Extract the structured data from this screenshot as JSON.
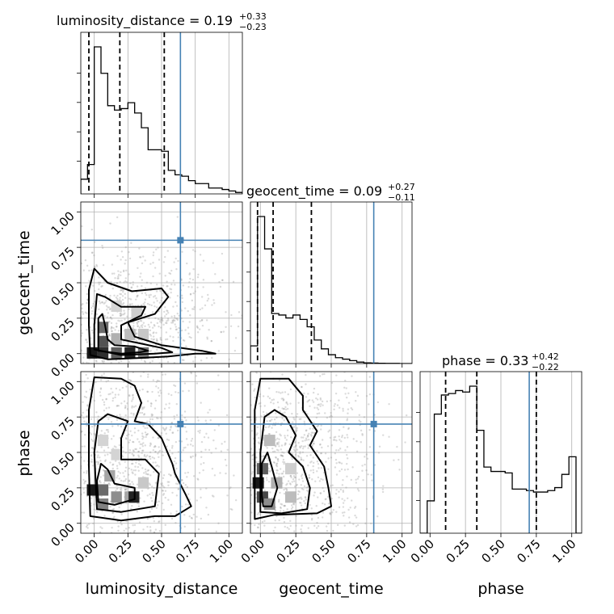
{
  "colors": {
    "truth": "#4682b4",
    "grid": "#b0b0b0",
    "line": "#000000",
    "scatter": "#999999"
  },
  "chart_data": {
    "type": "corner",
    "parameters": [
      "luminosity_distance",
      "geocent_time",
      "phase"
    ],
    "axis_ticks": [
      "0.00",
      "0.25",
      "0.50",
      "0.75",
      "1.00"
    ],
    "truths": {
      "luminosity_distance": 0.64,
      "geocent_time": 0.8,
      "phase": 0.7
    },
    "ranges": {
      "luminosity_distance": [
        -0.1,
        1.1
      ],
      "geocent_time": [
        -0.07,
        1.07
      ],
      "phase": [
        -0.07,
        1.07
      ]
    },
    "marginals": [
      {
        "parameter": "luminosity_distance",
        "title": "luminosity_distance = 0.19",
        "err_plus": "+0.33",
        "err_minus": "−0.23",
        "quantiles": [
          -0.04,
          0.19,
          0.52
        ],
        "bins": [
          -0.1,
          -0.05,
          0.0,
          0.05,
          0.1,
          0.15,
          0.2,
          0.25,
          0.3,
          0.35,
          0.4,
          0.45,
          0.5,
          0.55,
          0.6,
          0.65,
          0.7,
          0.75,
          0.8,
          0.85,
          0.9,
          0.95,
          1.0,
          1.05,
          1.1
        ],
        "counts": [
          100,
          200,
          1000,
          820,
          600,
          570,
          580,
          620,
          550,
          450,
          300,
          300,
          290,
          160,
          130,
          120,
          90,
          70,
          70,
          40,
          40,
          30,
          20,
          10
        ],
        "ymax": 1000
      },
      {
        "parameter": "geocent_time",
        "title": "geocent_time = 0.09",
        "err_plus": "+0.27",
        "err_minus": "−0.11",
        "quantiles": [
          -0.02,
          0.09,
          0.36
        ],
        "bins": [
          -0.07,
          -0.02,
          0.03,
          0.08,
          0.13,
          0.18,
          0.23,
          0.28,
          0.33,
          0.38,
          0.43,
          0.48,
          0.53,
          0.58,
          0.63,
          0.68,
          0.73,
          0.78,
          0.83,
          0.88,
          0.93,
          0.98,
          1.03,
          1.07
        ],
        "counts": [
          120,
          1000,
          780,
          340,
          330,
          310,
          330,
          300,
          250,
          160,
          100,
          60,
          40,
          30,
          20,
          10,
          5,
          3,
          2,
          1,
          1,
          0,
          0
        ],
        "ymax": 1000
      },
      {
        "parameter": "phase",
        "title": "phase = 0.33",
        "err_plus": "+0.42",
        "err_minus": "−0.22",
        "quantiles": [
          0.11,
          0.33,
          0.75
        ],
        "bins": [
          -0.07,
          -0.02,
          0.03,
          0.08,
          0.13,
          0.18,
          0.23,
          0.28,
          0.33,
          0.38,
          0.43,
          0.48,
          0.53,
          0.58,
          0.63,
          0.68,
          0.73,
          0.78,
          0.83,
          0.88,
          0.93,
          0.98,
          1.03,
          1.07
        ],
        "counts": [
          0,
          220,
          810,
          940,
          950,
          970,
          960,
          1000,
          700,
          450,
          420,
          420,
          410,
          300,
          300,
          290,
          280,
          280,
          290,
          310,
          400,
          520,
          0
        ],
        "ymax": 1000
      }
    ],
    "panels": [
      {
        "x": "luminosity_distance",
        "y": "geocent_time",
        "contours": [
          [
            [
              -0.03,
              -0.01
            ],
            [
              0.1,
              -0.04
            ],
            [
              0.35,
              -0.03
            ],
            [
              0.55,
              -0.02
            ],
            [
              0.75,
              0.0
            ],
            [
              0.9,
              0.0
            ],
            [
              0.8,
              0.02
            ],
            [
              0.5,
              0.06
            ],
            [
              0.3,
              0.12
            ],
            [
              0.25,
              0.22
            ],
            [
              0.45,
              0.28
            ],
            [
              0.55,
              0.4
            ],
            [
              0.5,
              0.46
            ],
            [
              0.28,
              0.44
            ],
            [
              0.1,
              0.5
            ],
            [
              0.04,
              0.56
            ],
            [
              0.0,
              0.6
            ],
            [
              -0.04,
              0.45
            ],
            [
              -0.04,
              0.2
            ],
            [
              -0.03,
              -0.01
            ]
          ],
          [
            [
              0.0,
              0.03
            ],
            [
              0.2,
              -0.01
            ],
            [
              0.45,
              0.0
            ],
            [
              0.58,
              0.01
            ],
            [
              0.5,
              0.04
            ],
            [
              0.35,
              0.07
            ],
            [
              0.2,
              0.1
            ],
            [
              0.2,
              0.2
            ],
            [
              0.35,
              0.27
            ],
            [
              0.38,
              0.33
            ],
            [
              0.2,
              0.33
            ],
            [
              0.08,
              0.4
            ],
            [
              0.02,
              0.42
            ],
            [
              0.0,
              0.2
            ],
            [
              0.0,
              0.03
            ]
          ],
          [
            [
              0.03,
              0.02
            ],
            [
              0.2,
              0.0
            ],
            [
              0.34,
              0.01
            ],
            [
              0.4,
              0.02
            ],
            [
              0.3,
              0.05
            ],
            [
              0.15,
              0.06
            ],
            [
              0.1,
              0.1
            ],
            [
              0.08,
              0.2
            ],
            [
              0.06,
              0.28
            ],
            [
              0.03,
              0.25
            ],
            [
              0.03,
              0.02
            ]
          ]
        ],
        "density": [
          [
            -0.03,
            0.02,
            0.9
          ],
          [
            0.05,
            0.02,
            0.8
          ],
          [
            0.15,
            0.02,
            0.6
          ],
          [
            0.25,
            0.02,
            0.85
          ],
          [
            0.35,
            0.02,
            0.5
          ],
          [
            0.05,
            0.1,
            0.65
          ],
          [
            0.05,
            0.2,
            0.55
          ],
          [
            0.15,
            0.12,
            0.25
          ],
          [
            0.25,
            0.15,
            0.2
          ],
          [
            0.35,
            0.15,
            0.15
          ],
          [
            0.3,
            0.3,
            0.12
          ],
          [
            0.15,
            0.35,
            0.1
          ]
        ],
        "npoints": 900,
        "scatter_center": [
          0.3,
          0.22
        ],
        "scatter_spread": [
          0.32,
          0.25
        ]
      },
      {
        "x": "luminosity_distance",
        "y": "phase",
        "contours": [
          [
            [
              -0.03,
              0.05
            ],
            [
              0.2,
              0.02
            ],
            [
              0.45,
              0.05
            ],
            [
              0.6,
              0.05
            ],
            [
              0.72,
              0.12
            ],
            [
              0.68,
              0.2
            ],
            [
              0.6,
              0.35
            ],
            [
              0.58,
              0.42
            ],
            [
              0.5,
              0.6
            ],
            [
              0.4,
              0.7
            ],
            [
              0.3,
              0.72
            ],
            [
              0.35,
              0.85
            ],
            [
              0.3,
              0.97
            ],
            [
              0.2,
              1.02
            ],
            [
              0.0,
              1.03
            ],
            [
              -0.04,
              0.8
            ],
            [
              -0.04,
              0.4
            ],
            [
              -0.03,
              0.05
            ]
          ],
          [
            [
              0.02,
              0.1
            ],
            [
              0.2,
              0.08
            ],
            [
              0.45,
              0.12
            ],
            [
              0.48,
              0.35
            ],
            [
              0.38,
              0.45
            ],
            [
              0.2,
              0.45
            ],
            [
              0.2,
              0.6
            ],
            [
              0.25,
              0.72
            ],
            [
              0.1,
              0.77
            ],
            [
              0.03,
              0.72
            ],
            [
              0.0,
              0.5
            ],
            [
              0.02,
              0.1
            ]
          ],
          [
            [
              0.03,
              0.15
            ],
            [
              0.15,
              0.13
            ],
            [
              0.3,
              0.17
            ],
            [
              0.3,
              0.25
            ],
            [
              0.15,
              0.28
            ],
            [
              0.1,
              0.38
            ],
            [
              0.05,
              0.42
            ],
            [
              0.02,
              0.3
            ],
            [
              0.03,
              0.15
            ]
          ]
        ],
        "density": [
          [
            -0.03,
            0.25,
            0.9
          ],
          [
            0.05,
            0.25,
            0.55
          ],
          [
            0.05,
            0.15,
            0.45
          ],
          [
            0.15,
            0.2,
            0.4
          ],
          [
            0.25,
            0.2,
            0.3
          ],
          [
            0.28,
            0.2,
            0.85
          ],
          [
            0.1,
            0.35,
            0.3
          ],
          [
            0.35,
            0.3,
            0.15
          ],
          [
            0.15,
            0.5,
            0.1
          ],
          [
            0.05,
            0.6,
            0.1
          ]
        ],
        "npoints": 1100,
        "scatter_center": [
          0.25,
          0.45
        ],
        "scatter_spread": [
          0.35,
          0.35
        ]
      },
      {
        "x": "geocent_time",
        "y": "phase",
        "contours": [
          [
            [
              -0.04,
              0.03
            ],
            [
              0.1,
              0.06
            ],
            [
              0.4,
              0.07
            ],
            [
              0.5,
              0.12
            ],
            [
              0.48,
              0.25
            ],
            [
              0.45,
              0.4
            ],
            [
              0.35,
              0.55
            ],
            [
              0.4,
              0.65
            ],
            [
              0.3,
              0.8
            ],
            [
              0.3,
              0.9
            ],
            [
              0.2,
              1.02
            ],
            [
              0.0,
              1.02
            ],
            [
              -0.04,
              0.8
            ],
            [
              -0.04,
              0.3
            ],
            [
              -0.04,
              0.03
            ]
          ],
          [
            [
              0.0,
              0.08
            ],
            [
              0.15,
              0.07
            ],
            [
              0.33,
              0.1
            ],
            [
              0.35,
              0.25
            ],
            [
              0.3,
              0.4
            ],
            [
              0.2,
              0.5
            ],
            [
              0.25,
              0.62
            ],
            [
              0.18,
              0.75
            ],
            [
              0.1,
              0.8
            ],
            [
              0.03,
              0.75
            ],
            [
              0.0,
              0.5
            ],
            [
              0.0,
              0.08
            ]
          ],
          [
            [
              0.02,
              0.12
            ],
            [
              0.08,
              0.12
            ],
            [
              0.12,
              0.25
            ],
            [
              0.08,
              0.4
            ],
            [
              0.05,
              0.5
            ],
            [
              0.01,
              0.42
            ],
            [
              0.01,
              0.2
            ],
            [
              0.02,
              0.12
            ]
          ]
        ],
        "density": [
          [
            -0.03,
            0.3,
            0.9
          ],
          [
            0.0,
            0.2,
            0.7
          ],
          [
            0.0,
            0.4,
            0.6
          ],
          [
            0.05,
            0.15,
            0.4
          ],
          [
            0.1,
            0.3,
            0.25
          ],
          [
            0.2,
            0.2,
            0.2
          ],
          [
            0.05,
            0.6,
            0.2
          ],
          [
            0.2,
            0.4,
            0.12
          ]
        ],
        "npoints": 1100,
        "scatter_center": [
          0.2,
          0.45
        ],
        "scatter_spread": [
          0.3,
          0.35
        ]
      }
    ],
    "title": "",
    "xlabel": "",
    "ylabel": ""
  }
}
